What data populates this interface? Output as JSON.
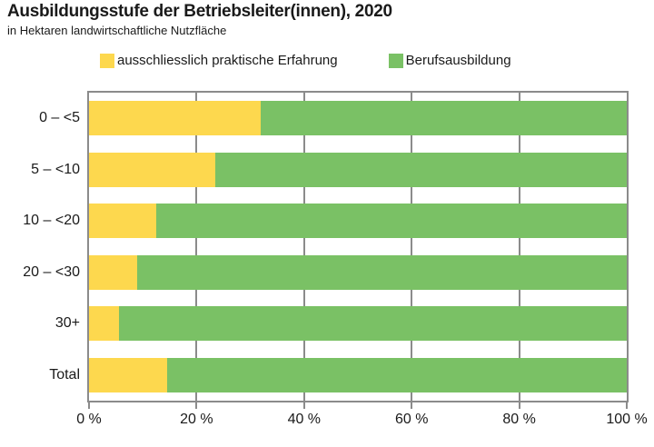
{
  "header": {
    "title": "Ausbildungsstufe der Betriebsleiter(innen), 2020",
    "subtitle": "in Hektaren landwirtschaftliche Nutzfläche"
  },
  "legend": {
    "items": [
      {
        "label": "ausschliesslich praktische Erfahrung",
        "color": "#FDD84E"
      },
      {
        "label": "Berufsausbildung",
        "color": "#7AC165"
      }
    ]
  },
  "colors": {
    "yellow": "#FDD84E",
    "green": "#7AC165",
    "grid": "#8b8b8b",
    "text": "#1a1a1a"
  },
  "chart_data": {
    "type": "bar",
    "orientation": "horizontal",
    "stacked": true,
    "title": "Ausbildungsstufe der Betriebsleiter(innen), 2020",
    "subtitle": "in Hektaren landwirtschaftliche Nutzfläche",
    "categories": [
      "0 – <5",
      "5 – <10",
      "10 – <20",
      "20 – <30",
      "30+",
      "Total"
    ],
    "series": [
      {
        "name": "ausschliesslich praktische Erfahrung",
        "color": "#FDD84E",
        "values": [
          32,
          23.5,
          12.5,
          9,
          5.5,
          14.5
        ]
      },
      {
        "name": "Berufsausbildung",
        "color": "#7AC165",
        "values": [
          68,
          76.5,
          87.5,
          91,
          94.5,
          85.5
        ]
      }
    ],
    "xlabel": "",
    "ylabel": "",
    "xlim": [
      0,
      100
    ],
    "x_ticks": [
      "0 %",
      "20 %",
      "40 %",
      "60 %",
      "80 %",
      "100 %"
    ],
    "x_tick_values": [
      0,
      20,
      40,
      60,
      80,
      100
    ],
    "gridline_values": [
      20,
      40,
      60,
      80
    ],
    "grid": true,
    "legend_position": "top"
  }
}
